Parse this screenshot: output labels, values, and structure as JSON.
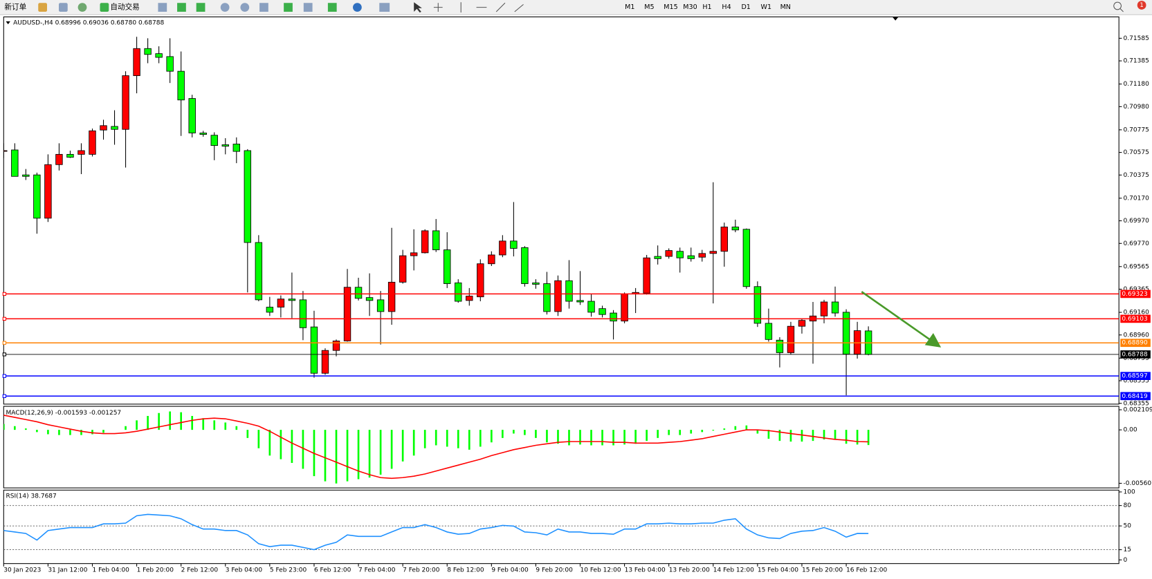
{
  "toolbar": {
    "buttons": [
      "新订单",
      "自动交易"
    ],
    "timeframes": [
      "M1",
      "M5",
      "M15",
      "M30",
      "H1",
      "H4",
      "D1",
      "W1",
      "MN"
    ],
    "badge": "1"
  },
  "chart_data": [
    {
      "type": "candlestick",
      "title": "AUDUSD-,H4 0.68996 0.69036 0.68780 0.68788",
      "categories": [
        "30 Jan 2023",
        null,
        null,
        null,
        "31 Jan 12:00",
        null,
        null,
        null,
        "1 Feb 04:00",
        null,
        null,
        null,
        "1 Feb 20:00",
        null,
        null,
        null,
        "2 Feb 12:00",
        null,
        null,
        null,
        "3 Feb 04:00",
        null,
        null,
        null,
        "5 Feb 23:00",
        null,
        null,
        null,
        "6 Feb 12:00",
        null,
        null,
        null,
        "7 Feb 04:00",
        null,
        null,
        null,
        "7 Feb 20:00",
        null,
        null,
        null,
        "8 Feb 12:00",
        null,
        null,
        null,
        "9 Feb 04:00",
        null,
        null,
        null,
        "9 Feb 20:00",
        null,
        null,
        null,
        "10 Feb 12:00",
        null,
        null,
        null,
        "13 Feb 04:00",
        null,
        null,
        null,
        "13 Feb 20:00",
        null,
        null,
        null,
        "14 Feb 12:00",
        null,
        null,
        null,
        "15 Feb 04:00",
        null,
        null,
        null,
        "15 Feb 20:00",
        null,
        null,
        null,
        "16 Feb 12:00",
        null,
        null
      ],
      "open": [
        0.70591,
        0.70597,
        0.70376,
        0.70376,
        0.69993,
        0.70467,
        0.70558,
        0.70558,
        0.70558,
        0.70773,
        0.70805,
        0.70779,
        0.71254,
        0.71494,
        0.71449,
        0.71423,
        0.71293,
        0.71052,
        0.70747,
        0.70727,
        0.70643,
        0.70649,
        0.70591,
        0.69778,
        0.69206,
        0.69206,
        0.69278,
        0.69271,
        0.69031,
        0.68621,
        0.68823,
        0.68907,
        0.69382,
        0.69291,
        0.69271,
        0.69167,
        0.69427,
        0.69661,
        0.69687,
        0.69882,
        0.69713,
        0.69421,
        0.69265,
        0.69297,
        0.6959,
        0.69668,
        0.69791,
        0.69733,
        0.69421,
        0.69414,
        0.69167,
        0.6944,
        0.69265,
        0.69258,
        0.69193,
        0.69154,
        0.69083,
        0.69323,
        0.6933,
        0.69655,
        0.69655,
        0.697,
        0.69661,
        0.69648,
        0.69681,
        0.697,
        0.69915,
        0.69895,
        0.69388,
        0.69063,
        0.68914,
        0.68803,
        0.69037,
        0.69083,
        0.69128,
        0.69252,
        0.69161,
        0.6879,
        0.68996
      ],
      "high": [
        0.70656,
        0.70656,
        0.70428,
        0.70396,
        0.70558,
        0.70656,
        0.70591,
        0.70656,
        0.70786,
        0.70864,
        0.70948,
        0.71293,
        0.71598,
        0.71585,
        0.71514,
        0.71585,
        0.71468,
        0.71085,
        0.70766,
        0.70753,
        0.70701,
        0.70708,
        0.70604,
        0.69843,
        0.69297,
        0.6931,
        0.69512,
        0.69349,
        0.69174,
        0.68842,
        0.6892,
        0.69544,
        0.69466,
        0.69505,
        0.69349,
        0.69908,
        0.69713,
        0.69895,
        0.69895,
        0.69986,
        0.69869,
        0.69453,
        0.69375,
        0.69629,
        0.697,
        0.69843,
        0.70136,
        0.69746,
        0.69453,
        0.69518,
        0.69486,
        0.69622,
        0.69525,
        0.69323,
        0.69219,
        0.6918,
        0.69336,
        0.69375,
        0.69668,
        0.69752,
        0.69726,
        0.69733,
        0.69733,
        0.69713,
        0.70311,
        0.69954,
        0.6998,
        0.69902,
        0.69434,
        0.69193,
        0.6894,
        0.69076,
        0.69102,
        0.69252,
        0.69271,
        0.69388,
        0.69187,
        0.69076,
        0.69036
      ],
      "low": [
        0.70526,
        0.70363,
        0.70331,
        0.69856,
        0.6996,
        0.70415,
        0.70526,
        0.70383,
        0.70539,
        0.70688,
        0.70643,
        0.70441,
        0.71098,
        0.71364,
        0.71364,
        0.71189,
        0.70721,
        0.70708,
        0.70714,
        0.70506,
        0.70558,
        0.7048,
        0.69336,
        0.69258,
        0.69128,
        0.69115,
        0.69109,
        0.68914,
        0.68582,
        0.68608,
        0.68771,
        0.68901,
        0.69265,
        0.69128,
        0.68875,
        0.6905,
        0.69414,
        0.69531,
        0.69681,
        0.69694,
        0.69375,
        0.69245,
        0.69219,
        0.69258,
        0.6957,
        0.69648,
        0.69655,
        0.69388,
        0.69369,
        0.69141,
        0.69128,
        0.69193,
        0.69226,
        0.69122,
        0.69115,
        0.6892,
        0.69063,
        0.69154,
        0.69317,
        0.69583,
        0.69635,
        0.69512,
        0.69609,
        0.69609,
        0.69239,
        0.69564,
        0.69869,
        0.69369,
        0.69031,
        0.68901,
        0.68673,
        0.6879,
        0.68972,
        0.68706,
        0.69063,
        0.69122,
        0.68426,
        0.68751,
        0.6878
      ],
      "close": [
        0.70591,
        0.70363,
        0.70363,
        0.69993,
        0.70467,
        0.70558,
        0.70532,
        0.70591,
        0.70766,
        0.70812,
        0.70779,
        0.71254,
        0.71494,
        0.71442,
        0.71416,
        0.71293,
        0.71039,
        0.70747,
        0.70734,
        0.70636,
        0.7063,
        0.70584,
        0.69778,
        0.69271,
        0.69161,
        0.69278,
        0.69265,
        0.69024,
        0.68621,
        0.68823,
        0.68907,
        0.69382,
        0.69284,
        0.69265,
        0.69167,
        0.69427,
        0.69661,
        0.69687,
        0.69882,
        0.69713,
        0.69414,
        0.69258,
        0.69304,
        0.6959,
        0.69668,
        0.69791,
        0.69726,
        0.69414,
        0.69408,
        0.69167,
        0.6944,
        0.69258,
        0.69252,
        0.69161,
        0.69141,
        0.69083,
        0.69323,
        0.69336,
        0.69642,
        0.69635,
        0.69707,
        0.69642,
        0.69635,
        0.69681,
        0.697,
        0.69915,
        0.69889,
        0.69388,
        0.69063,
        0.6892,
        0.68803,
        0.69037,
        0.69089,
        0.69128,
        0.69252,
        0.69154,
        0.6879,
        0.68998,
        0.68788
      ],
      "up_color": "#ff0000",
      "down_color": "#00ff00",
      "ylim": [
        0.68348,
        0.71774
      ],
      "yticks": [
        0.71585,
        0.71385,
        {
          "value": 0.7118,
          "label": "0.71180"
        },
        {
          "value": 0.7098,
          "label": "0.70980"
        },
        0.70775,
        0.70575,
        0.70375,
        {
          "value": 0.7017,
          "label": "0.70170"
        },
        {
          "value": 0.6997,
          "label": "0.69970"
        },
        {
          "value": 0.6977,
          "label": "0.69770"
        },
        0.69565,
        0.69365,
        {
          "value": 0.6916,
          "label": "0.69160"
        },
        {
          "value": 0.6896,
          "label": "0.68960"
        },
        0.68755,
        0.68555,
        0.68355
      ],
      "hlines": [
        {
          "value": 0.69323,
          "color": "#ff0000"
        },
        {
          "value": 0.69103,
          "color": "#ff0000"
        },
        {
          "value": 0.6889,
          "label": "0.68890",
          "color": "#ff8000"
        },
        {
          "value": 0.68788,
          "color": "#000000"
        },
        {
          "value": 0.68597,
          "color": "#0000ff"
        },
        {
          "value": 0.68419,
          "color": "#0000ff"
        }
      ]
    },
    {
      "type": "macd",
      "title": "MACD(12,26,9) -0.001593 -0.001257",
      "series": [
        {
          "style": "histogram",
          "color": "#00ff00",
          "values": [
            0.00062,
            0.00039,
            0.00015,
            -0.00023,
            -0.00046,
            -0.00054,
            -0.00054,
            -0.00054,
            -0.00046,
            -0.00031,
            0,
            0.00039,
            0.001,
            0.00146,
            0.00177,
            0.00193,
            0.00185,
            0.00146,
            0.00123,
            0.001,
            0.00077,
            0.00039,
            -0.00085,
            -0.00193,
            -0.0027,
            -0.00308,
            -0.00347,
            -0.00409,
            -0.00486,
            -0.0054,
            -0.00563,
            -0.0054,
            -0.00517,
            -0.00501,
            -0.0047,
            -0.00409,
            -0.00332,
            -0.0027,
            -0.00193,
            -0.00162,
            -0.00177,
            -0.00193,
            -0.00208,
            -0.00177,
            -0.00131,
            -0.00085,
            -0.00039,
            -0.00054,
            -0.00085,
            -0.00131,
            -0.00146,
            -0.00162,
            -0.00154,
            -0.00162,
            -0.00162,
            -0.00162,
            -0.00154,
            -0.00146,
            -0.00116,
            -0.00085,
            -0.00054,
            -0.00054,
            -0.00039,
            -0.00023,
            -8e-05,
            0.00015,
            0.00039,
            0.00046,
            -0.00039,
            -0.00093,
            -0.00116,
            -0.00123,
            -0.00123,
            -0.00116,
            -0.001,
            -0.001,
            -0.00146,
            -0.00154,
            -0.001593
          ]
        },
        {
          "style": "line",
          "color": "#ff0000",
          "values": [
            0.00154,
            0.00131,
            0.00108,
            0.00085,
            0.00054,
            0.00031,
            8e-05,
            -0.00015,
            -0.00031,
            -0.00039,
            -0.00039,
            -0.00031,
            -0.00015,
            8e-05,
            0.00031,
            0.00054,
            0.00077,
            0.001,
            0.00116,
            0.00123,
            0.00116,
            0.00093,
            0.00069,
            0.00039,
            -0.00015,
            -0.00077,
            -0.00139,
            -0.00193,
            -0.00247,
            -0.00293,
            -0.00339,
            -0.00386,
            -0.00432,
            -0.0047,
            -0.00501,
            -0.00509,
            -0.00501,
            -0.00486,
            -0.00463,
            -0.00432,
            -0.00401,
            -0.0037,
            -0.00339,
            -0.00308,
            -0.0027,
            -0.00239,
            -0.00208,
            -0.00185,
            -0.00162,
            -0.00146,
            -0.00131,
            -0.00123,
            -0.00123,
            -0.00123,
            -0.00123,
            -0.00131,
            -0.00131,
            -0.00139,
            -0.00139,
            -0.00139,
            -0.00131,
            -0.00123,
            -0.00108,
            -0.00093,
            -0.00069,
            -0.00046,
            -0.00023,
            0,
            0,
            -8e-05,
            -0.00023,
            -0.00039,
            -0.00054,
            -0.00069,
            -0.00085,
            -0.001,
            -0.00108,
            -0.00123,
            -0.001257
          ]
        }
      ],
      "ylim": [
        -0.00609,
        0.00247
      ],
      "yticks": [
        0.002109,
        {
          "value": 0,
          "label": "0.00"
        },
        -0.005607
      ]
    },
    {
      "type": "line",
      "title": "RSI(14) 38.7687",
      "series": [
        {
          "color": "#1e90ff",
          "values": [
            43.2,
            41.1,
            38.9,
            29.2,
            43.2,
            45.4,
            47.6,
            47.6,
            47.6,
            53.0,
            53.0,
            54.1,
            64.9,
            67.0,
            66.0,
            64.9,
            60.5,
            51.9,
            45.4,
            45.4,
            43.2,
            43.2,
            36.8,
            23.8,
            19.5,
            21.6,
            21.6,
            18.4,
            15.1,
            21.6,
            25.9,
            36.8,
            34.6,
            34.6,
            34.6,
            41.1,
            47.6,
            47.6,
            51.9,
            47.6,
            41.1,
            37.8,
            38.9,
            45.4,
            47.6,
            50.8,
            49.7,
            41.1,
            40.0,
            36.8,
            45.4,
            41.1,
            41.1,
            38.9,
            38.9,
            37.8,
            45.4,
            45.4,
            53.0,
            53.0,
            54.1,
            53.0,
            53.0,
            54.1,
            54.1,
            58.4,
            60.5,
            45.4,
            36.8,
            32.4,
            31.4,
            38.9,
            42.2,
            43.2,
            47.6,
            42.2,
            33.5,
            38.9,
            38.7687
          ]
        }
      ],
      "levels": [
        80,
        50,
        15
      ],
      "ylim": [
        -5.4,
        102.7
      ],
      "yticks": [
        100,
        80,
        50,
        15,
        0
      ]
    }
  ]
}
